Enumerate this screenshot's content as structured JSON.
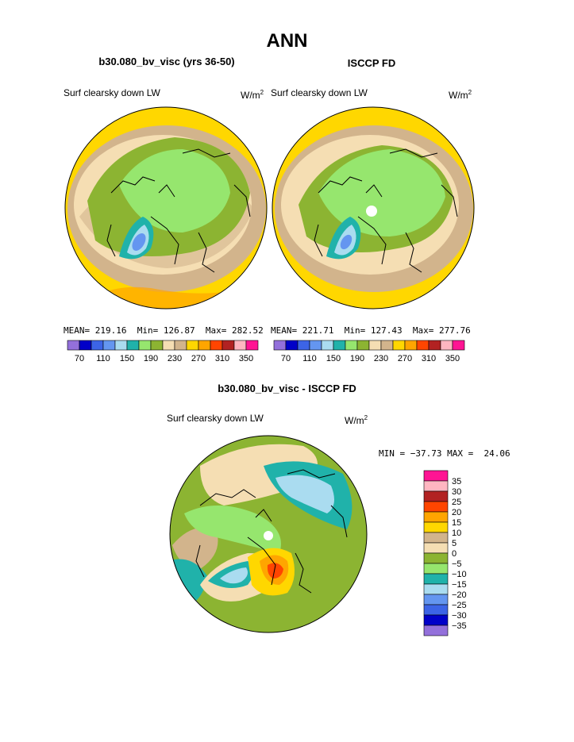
{
  "title": "ANN",
  "panel_left": {
    "header": "b30.080_bv_visc (yrs 36-50)",
    "variable": "Surf clearsky down LW",
    "units_base": "W/m",
    "units_exp": "2",
    "stats": {
      "mean_label": "MEAN=",
      "mean": "219.16",
      "min_label": "Min=",
      "min": "126.87",
      "max_label": "Max=",
      "max": "282.52"
    }
  },
  "panel_right": {
    "header": "ISCCP FD",
    "variable": "Surf clearsky down LW",
    "units_base": "W/m",
    "units_exp": "2",
    "stats": {
      "mean_label": "MEAN=",
      "mean": "221.71",
      "min_label": "Min=",
      "min": "127.43",
      "max_label": "Max=",
      "max": "277.76"
    }
  },
  "panel_diff": {
    "header": "b30.080_bv_visc - ISCCP FD",
    "variable": "Surf clearsky down LW",
    "units_base": "W/m",
    "units_exp": "2",
    "minmax": "MIN = −37.73 MAX =  24.06"
  },
  "colorbar_main": {
    "colors": [
      "#9370db",
      "#0000c8",
      "#3c64e6",
      "#6496f0",
      "#aadcf0",
      "#20b2aa",
      "#96e66e",
      "#8cb432",
      "#f5deb3",
      "#d2b48c",
      "#ffd700",
      "#ffa500",
      "#ff4500",
      "#b22222",
      "#ffb6c1",
      "#ff1493"
    ],
    "labels": [
      "70",
      "110",
      "150",
      "190",
      "230",
      "270",
      "310",
      "350"
    ]
  },
  "colorbar_diff": {
    "colors": [
      "#ff1493",
      "#ffb6c1",
      "#b22222",
      "#ff4500",
      "#ffa500",
      "#ffd700",
      "#d2b48c",
      "#f5deb3",
      "#8cb432",
      "#96e66e",
      "#20b2aa",
      "#aadcf0",
      "#6496f0",
      "#3c64e6",
      "#0000c8",
      "#9370db"
    ],
    "labels": [
      "35",
      "30",
      "25",
      "20",
      "15",
      "10",
      "5",
      "0",
      "−5",
      "−10",
      "−15",
      "−20",
      "−25",
      "−30",
      "−35"
    ]
  },
  "map_colors": {
    "yellow": "#ffd700",
    "tan": "#d2b48c",
    "wheat": "#f5deb3",
    "olive": "#8cb432",
    "lightgreen": "#96e66e",
    "teal": "#20b2aa",
    "lightblue": "#aadcf0",
    "blue": "#6496f0",
    "orange": "#ffa500",
    "red": "#ff4500"
  }
}
